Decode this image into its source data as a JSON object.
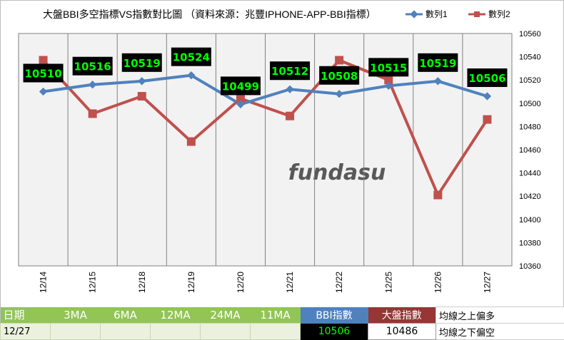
{
  "chart_data": {
    "type": "line",
    "title": "大盤BBI多空指標VS指數對比圖 （資料來源：兆豐IPHONE-APP-BBI指標）",
    "categories": [
      "12/14",
      "12/15",
      "12/18",
      "12/19",
      "12/20",
      "12/21",
      "12/22",
      "12/25",
      "12/26",
      "12/27"
    ],
    "series": [
      {
        "name": "數列1",
        "color": "#4f81bd",
        "values": [
          10510,
          10516,
          10519,
          10524,
          10499,
          10512,
          10508,
          10515,
          10519,
          10506
        ]
      },
      {
        "name": "數列2",
        "color": "#c0504d",
        "values": [
          10537,
          10491,
          10506,
          10467,
          10504,
          10489,
          10537,
          10520,
          10421,
          10486
        ]
      }
    ],
    "ylim": [
      10360,
      10560
    ],
    "yticks": [
      10360,
      10380,
      10400,
      10420,
      10440,
      10460,
      10480,
      10500,
      10520,
      10540,
      10560
    ],
    "labels": [
      "10510",
      "10516",
      "10519",
      "10524",
      "10499",
      "10512",
      "10508",
      "10515",
      "10519",
      "10506"
    ],
    "y_axis_side": "right",
    "legend_position": "top-right",
    "grid": "vertical lines",
    "watermark": "fundasu"
  },
  "table": {
    "header": {
      "date": "日期",
      "ma3": "3MA",
      "ma6": "6MA",
      "ma12": "12MA",
      "ma24": "24MA",
      "ma11": "11MA",
      "bbi": "BBI指數",
      "index": "大盤指數",
      "note": "均線之上偏多"
    },
    "row": {
      "date": "12/27",
      "bbi_value": "10506",
      "index_value": "10486",
      "note": "均線之下偏空"
    }
  },
  "colors": {
    "plot_bg": "#f2f2f2",
    "series1": "#4f81bd",
    "series2": "#c0504d",
    "label_bg": "#000000",
    "label_text": "#00ff00",
    "green_header": "#92c456",
    "blue_header": "#4f81bd",
    "red_header": "#953735"
  }
}
